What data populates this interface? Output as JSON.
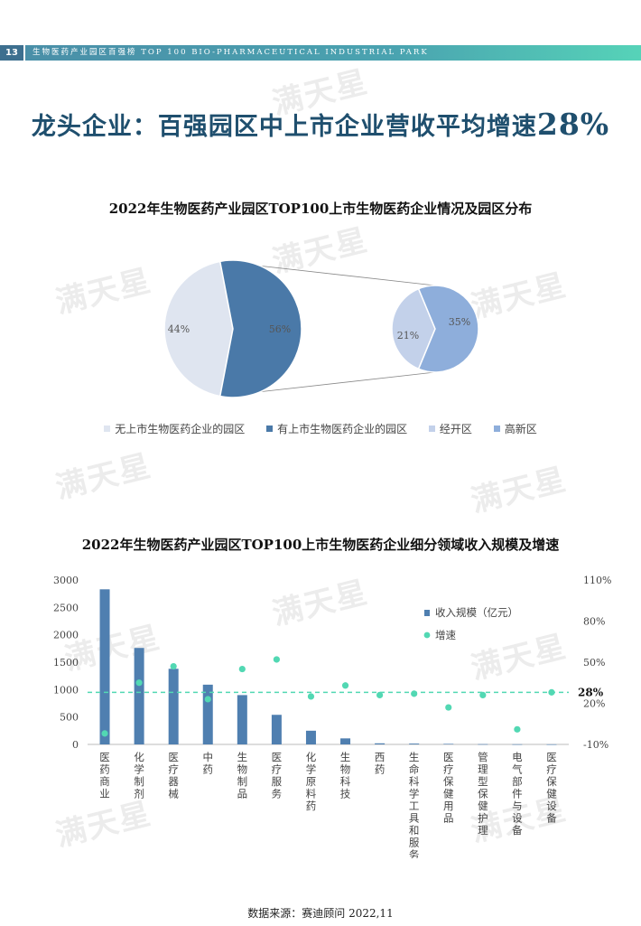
{
  "header": {
    "page_number": "13",
    "band_text": "生物医药产业园区百强榜  TOP 100 BIO-PHARMACEUTICAL INDUSTRIAL PARK"
  },
  "heading": {
    "main": "龙头企业：百强园区中上市企业营收平均增速",
    "pct": "28%"
  },
  "watermark": "满天星",
  "source": "数据来源：赛迪顾问 2022,11",
  "colors": {
    "pie_light": "#dfe5f0",
    "pie_dark": "#4a79a8",
    "sub_light": "#c3d1ea",
    "sub_dark": "#8eaedb",
    "bar": "#4f7fb0",
    "dot": "#52d8b3",
    "ref_line": "#52d8b3"
  },
  "chart_data": [
    {
      "type": "pie",
      "title": "2022年生物医药产业园区TOP100上市生物医药企业情况及园区分布",
      "slices": [
        {
          "label": "无上市生物医药企业的园区",
          "value": 44,
          "text": "44%"
        },
        {
          "label": "有上市生物医药企业的园区",
          "value": 56,
          "text": "56%"
        }
      ],
      "breakdown_of": "有上市生物医药企业的园区",
      "sub_slices": [
        {
          "label": "经开区",
          "value": 21,
          "text": "21%"
        },
        {
          "label": "高新区",
          "value": 35,
          "text": "35%"
        }
      ],
      "legend": [
        "无上市生物医药企业的园区",
        "有上市生物医药企业的园区",
        "经开区",
        "高新区"
      ],
      "legend_position": "bottom"
    },
    {
      "type": "bar",
      "title": "2022年生物医药产业园区TOP100上市生物医药企业细分领域收入规模及增速",
      "categories": [
        "医药商业",
        "化学制剂",
        "医疗器械",
        "中药",
        "生物制品",
        "医疗服务",
        "化学原料药",
        "生物科技",
        "西药",
        "生命科学工具和服务",
        "医疗保健用品",
        "管理型保健护理",
        "电气部件与设备",
        "医疗保健设备"
      ],
      "series": [
        {
          "name": "收入规模（亿元）",
          "axis": "left",
          "type": "bar",
          "values": [
            2830,
            1760,
            1380,
            1090,
            900,
            540,
            250,
            110,
            20,
            15,
            10,
            5,
            3,
            2
          ]
        },
        {
          "name": "增速",
          "axis": "right",
          "type": "scatter",
          "unit": "%",
          "values": [
            -2,
            35,
            47,
            23,
            45,
            52,
            25,
            33,
            26,
            27,
            17,
            26,
            1,
            28
          ]
        }
      ],
      "y_left": {
        "min": 0,
        "max": 3000,
        "ticks": [
          "0",
          "500",
          "1000",
          "1500",
          "2000",
          "2500",
          "3000"
        ]
      },
      "y_right": {
        "min": -10,
        "max": 110,
        "ticks": [
          "-10%",
          "20%",
          "50%",
          "80%",
          "110%"
        ]
      },
      "reference_line": {
        "value": 28,
        "label": "28%"
      },
      "legend_position": "top-right"
    }
  ]
}
